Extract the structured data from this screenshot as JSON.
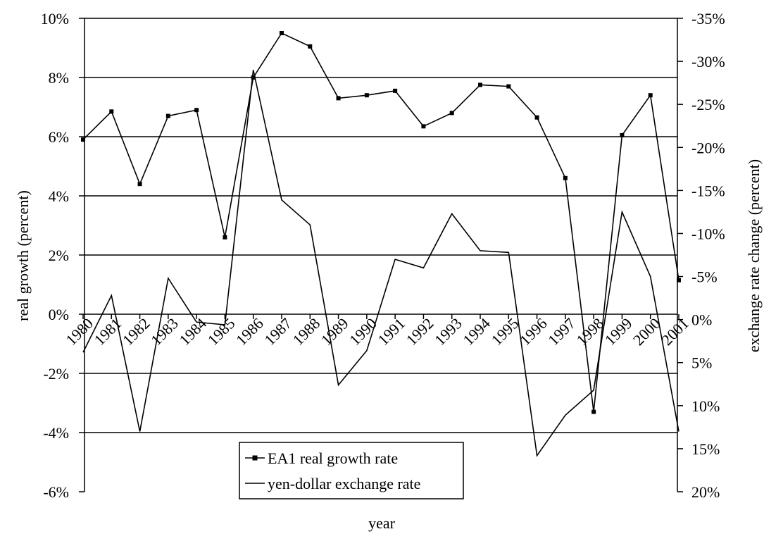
{
  "chart_data": {
    "type": "line",
    "xlabel": "year",
    "ylabel_left": "real growth (percent)",
    "ylabel_right": "exchange rate change (percent)",
    "ylim_left": [
      -6,
      10
    ],
    "ylim_right": [
      20,
      -35
    ],
    "left_ticks": [
      "-6%",
      "-4%",
      "-2%",
      "0%",
      "2%",
      "4%",
      "6%",
      "8%",
      "10%"
    ],
    "right_ticks": [
      "20%",
      "15%",
      "10%",
      "5%",
      "0%",
      "-5%",
      "-10%",
      "-15%",
      "-20%",
      "-25%",
      "-30%",
      "-35%"
    ],
    "categories": [
      "1980",
      "1981",
      "1982",
      "1983",
      "1984",
      "1985",
      "1986",
      "1987",
      "1988",
      "1989",
      "1990",
      "1991",
      "1992",
      "1993",
      "1994",
      "1995",
      "1996",
      "1997",
      "1998",
      "1999",
      "2000",
      "2001"
    ],
    "grid": true,
    "legend_position": "bottom-center",
    "series": [
      {
        "name": "EA1 real growth rate",
        "axis": "left",
        "marker": "square",
        "values": [
          5.9,
          6.85,
          4.4,
          6.7,
          6.9,
          2.6,
          8.0,
          9.5,
          9.05,
          7.3,
          7.4,
          7.55,
          6.35,
          6.8,
          7.75,
          7.7,
          6.65,
          4.6,
          -3.3,
          6.05,
          7.4,
          1.15
        ]
      },
      {
        "name": "yen-dollar exchange rate",
        "axis": "right",
        "marker": "none",
        "values": [
          3.8,
          -2.8,
          13.0,
          -4.8,
          0.3,
          0.6,
          -29.0,
          -13.9,
          -11.0,
          7.6,
          3.6,
          -7.0,
          -6.0,
          -12.3,
          -8.0,
          -7.8,
          15.8,
          11.1,
          8.2,
          -12.5,
          -5.0,
          13.0
        ]
      }
    ]
  }
}
